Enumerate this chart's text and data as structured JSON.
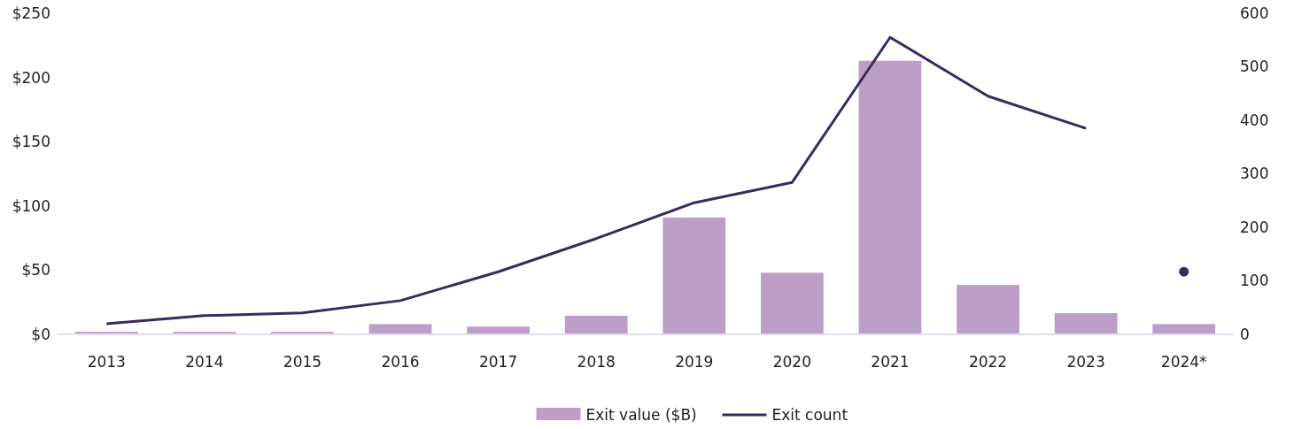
{
  "chart_data": {
    "type": "bar",
    "categories": [
      "2013",
      "2014",
      "2015",
      "2016",
      "2017",
      "2018",
      "2019",
      "2020",
      "2021",
      "2022",
      "2023",
      "2024*"
    ],
    "series": [
      {
        "name": "Exit value ($B)",
        "color": "#bd9ec9",
        "values": [
          2,
          2,
          2,
          8,
          6,
          14.5,
          91,
          48,
          213,
          38.5,
          16.5,
          8
        ]
      },
      {
        "name": "Exit count",
        "type": "line",
        "axis": "y2",
        "color": "#3a2b5a",
        "values": [
          20,
          35,
          40,
          63,
          117,
          179,
          246,
          284,
          555,
          445,
          385,
          null
        ]
      },
      {
        "type": "scatter",
        "axis": "y2",
        "color": "#3a2b5a",
        "marker": "circle",
        "x": [
          "2024*"
        ],
        "values": [
          117
        ]
      }
    ],
    "ylim": [
      0,
      250
    ],
    "yticks": [
      {
        "value": 0,
        "label": "$0"
      },
      {
        "value": 50,
        "label": "$50"
      },
      {
        "value": 100,
        "label": "$100"
      },
      {
        "value": 150,
        "label": "$150"
      },
      {
        "value": 200,
        "label": "$200"
      },
      {
        "value": 250,
        "label": "$250"
      }
    ],
    "y2lim": [
      0,
      600
    ],
    "y2ticks": [
      0,
      100,
      200,
      300,
      400,
      500,
      600
    ],
    "legend": "bottom",
    "grid": false
  }
}
